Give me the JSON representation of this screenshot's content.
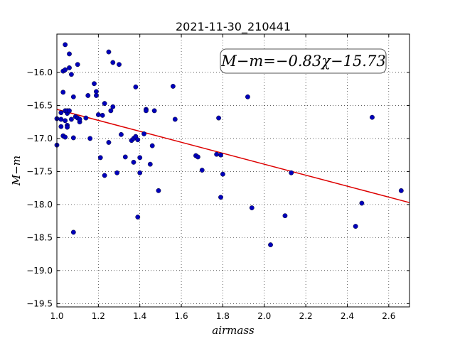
{
  "chart_data": {
    "type": "scatter",
    "title": "2021-11-30_210441",
    "xlabel": "airmass",
    "ylabel": "M−m",
    "xlim": [
      1.0,
      2.7
    ],
    "ylim": [
      -19.55,
      -15.42
    ],
    "xticks": [
      1.0,
      1.2,
      1.4,
      1.6,
      1.8,
      2.0,
      2.2,
      2.4,
      2.6
    ],
    "xtick_labels": [
      "1.0",
      "1.2",
      "1.4",
      "1.6",
      "1.8",
      "2.0",
      "2.2",
      "2.4",
      "2.6"
    ],
    "yticks": [
      -16.0,
      -16.5,
      -17.0,
      -17.5,
      -18.0,
      -18.5,
      -19.0,
      -19.5
    ],
    "ytick_labels": [
      "−16.0",
      "−16.5",
      "−17.0",
      "−17.5",
      "−18.0",
      "−18.5",
      "−19.0",
      "−19.5"
    ],
    "grid": true,
    "annotation": "M−m=−0.83χ−15.73",
    "fit": {
      "slope": -0.83,
      "intercept": -15.73,
      "color": "#dd0000"
    },
    "marker_color": "#0000bb",
    "points": [
      [
        1.0,
        -16.7
      ],
      [
        1.0,
        -17.1
      ],
      [
        1.02,
        -16.82
      ],
      [
        1.02,
        -16.61
      ],
      [
        1.02,
        -16.71
      ],
      [
        1.03,
        -16.3
      ],
      [
        1.03,
        -15.98
      ],
      [
        1.03,
        -16.96
      ],
      [
        1.04,
        -15.96
      ],
      [
        1.04,
        -16.73
      ],
      [
        1.04,
        -16.98
      ],
      [
        1.04,
        -16.58
      ],
      [
        1.04,
        -15.58
      ],
      [
        1.05,
        -16.8
      ],
      [
        1.05,
        -16.62
      ],
      [
        1.05,
        -16.83
      ],
      [
        1.05,
        -16.58
      ],
      [
        1.06,
        -15.72
      ],
      [
        1.06,
        -15.93
      ],
      [
        1.06,
        -16.58
      ],
      [
        1.07,
        -16.71
      ],
      [
        1.07,
        -16.03
      ],
      [
        1.08,
        -16.37
      ],
      [
        1.08,
        -16.99
      ],
      [
        1.08,
        -18.42
      ],
      [
        1.09,
        -16.67
      ],
      [
        1.1,
        -15.88
      ],
      [
        1.1,
        -16.69
      ],
      [
        1.11,
        -16.75
      ],
      [
        1.11,
        -16.71
      ],
      [
        1.14,
        -16.69
      ],
      [
        1.15,
        -16.35
      ],
      [
        1.16,
        -17.0
      ],
      [
        1.18,
        -16.17
      ],
      [
        1.19,
        -16.29
      ],
      [
        1.19,
        -16.35
      ],
      [
        1.2,
        -16.64
      ],
      [
        1.21,
        -17.29
      ],
      [
        1.22,
        -16.65
      ],
      [
        1.23,
        -16.47
      ],
      [
        1.23,
        -17.56
      ],
      [
        1.25,
        -17.06
      ],
      [
        1.25,
        -15.69
      ],
      [
        1.26,
        -16.58
      ],
      [
        1.27,
        -15.85
      ],
      [
        1.27,
        -16.52
      ],
      [
        1.29,
        -17.52
      ],
      [
        1.3,
        -15.88
      ],
      [
        1.31,
        -16.94
      ],
      [
        1.33,
        -17.28
      ],
      [
        1.36,
        -17.03
      ],
      [
        1.37,
        -17.36
      ],
      [
        1.37,
        -17.0
      ],
      [
        1.38,
        -16.22
      ],
      [
        1.38,
        -16.97
      ],
      [
        1.39,
        -17.02
      ],
      [
        1.39,
        -18.19
      ],
      [
        1.4,
        -17.29
      ],
      [
        1.4,
        -17.52
      ],
      [
        1.42,
        -16.93
      ],
      [
        1.43,
        -16.56
      ],
      [
        1.43,
        -16.58
      ],
      [
        1.45,
        -17.39
      ],
      [
        1.46,
        -17.11
      ],
      [
        1.47,
        -16.58
      ],
      [
        1.49,
        -17.79
      ],
      [
        1.56,
        -16.21
      ],
      [
        1.57,
        -16.71
      ],
      [
        1.67,
        -17.26
      ],
      [
        1.68,
        -17.28
      ],
      [
        1.7,
        -17.48
      ],
      [
        1.77,
        -17.24
      ],
      [
        1.78,
        -16.69
      ],
      [
        1.79,
        -17.25
      ],
      [
        1.79,
        -17.89
      ],
      [
        1.8,
        -17.54
      ],
      [
        1.92,
        -16.37
      ],
      [
        1.94,
        -18.05
      ],
      [
        2.03,
        -18.61
      ],
      [
        2.1,
        -18.17
      ],
      [
        2.13,
        -17.52
      ],
      [
        2.44,
        -18.33
      ],
      [
        2.47,
        -17.98
      ],
      [
        2.52,
        -16.68
      ],
      [
        2.66,
        -17.79
      ]
    ]
  }
}
